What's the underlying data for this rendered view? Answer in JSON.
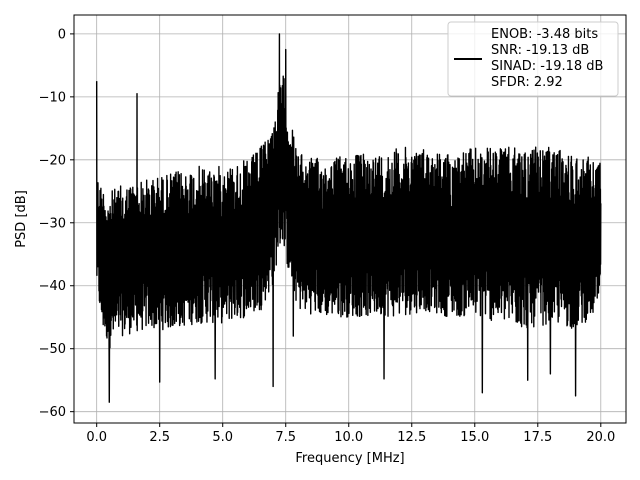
{
  "chart_data": {
    "type": "line",
    "xlabel": "Frequency [MHz]",
    "ylabel": "PSD [dB]",
    "xlim": [
      -0.9,
      21.0
    ],
    "ylim": [
      -61.8,
      3.0
    ],
    "x_ticks": [
      0.0,
      2.5,
      5.0,
      7.5,
      10.0,
      12.5,
      15.0,
      17.5,
      20.0
    ],
    "x_tick_labels": [
      "0.0",
      "2.5",
      "5.0",
      "7.5",
      "10.0",
      "12.5",
      "15.0",
      "17.5",
      "20.0"
    ],
    "y_ticks": [
      0,
      -10,
      -20,
      -30,
      -40,
      -50,
      -60
    ],
    "y_tick_labels": [
      "0",
      "−10",
      "−20",
      "−30",
      "−40",
      "−50",
      "−60"
    ],
    "grid": true,
    "legend_placement": "upper right",
    "line_color": "#000000",
    "series": [
      {
        "name": "ENOB: -3.48 bits\nSNR: -19.13 dB\nSINAD: -19.18 dB\nSFDR: 2.92",
        "x_range": [
          0.0,
          20.0
        ],
        "noise_floor_envelope": {
          "x": [
            0.0,
            0.2,
            0.5,
            1.0,
            2.0,
            3.0,
            4.0,
            5.0,
            6.0,
            6.5,
            7.0,
            7.2,
            7.4,
            7.6,
            8.0,
            9.0,
            10.0,
            11.0,
            12.0,
            13.0,
            14.0,
            15.0,
            16.0,
            17.0,
            18.0,
            19.0,
            20.0
          ],
          "upper": [
            -22,
            -24,
            -25,
            -24,
            -23,
            -22,
            -21,
            -21,
            -20,
            -18,
            -14,
            -9,
            -6,
            -12,
            -19,
            -20,
            -19,
            -19,
            -18,
            -18,
            -19,
            -18,
            -18,
            -18,
            -18,
            -19,
            -20
          ],
          "lower": [
            -40,
            -47,
            -50,
            -48,
            -47,
            -47,
            -46,
            -46,
            -45,
            -44,
            -40,
            -35,
            -33,
            -38,
            -44,
            -45,
            -45,
            -45,
            -45,
            -44,
            -45,
            -45,
            -46,
            -47,
            -46,
            -47,
            -44
          ]
        },
        "peaks": [
          {
            "x": 0.0,
            "y": -7.5
          },
          {
            "x": 1.6,
            "y": -9.5
          },
          {
            "x": 7.25,
            "y": 0.0
          },
          {
            "x": 7.5,
            "y": -2.5
          }
        ],
        "dips": [
          {
            "x": 0.5,
            "y": -58.5
          },
          {
            "x": 2.5,
            "y": -55.3
          },
          {
            "x": 4.7,
            "y": -54.8
          },
          {
            "x": 7.0,
            "y": -56.0
          },
          {
            "x": 7.8,
            "y": -48.0
          },
          {
            "x": 11.4,
            "y": -54.8
          },
          {
            "x": 15.3,
            "y": -57.0
          },
          {
            "x": 17.1,
            "y": -55.0
          },
          {
            "x": 18.0,
            "y": -54.0
          },
          {
            "x": 19.0,
            "y": -57.5
          }
        ]
      }
    ]
  }
}
